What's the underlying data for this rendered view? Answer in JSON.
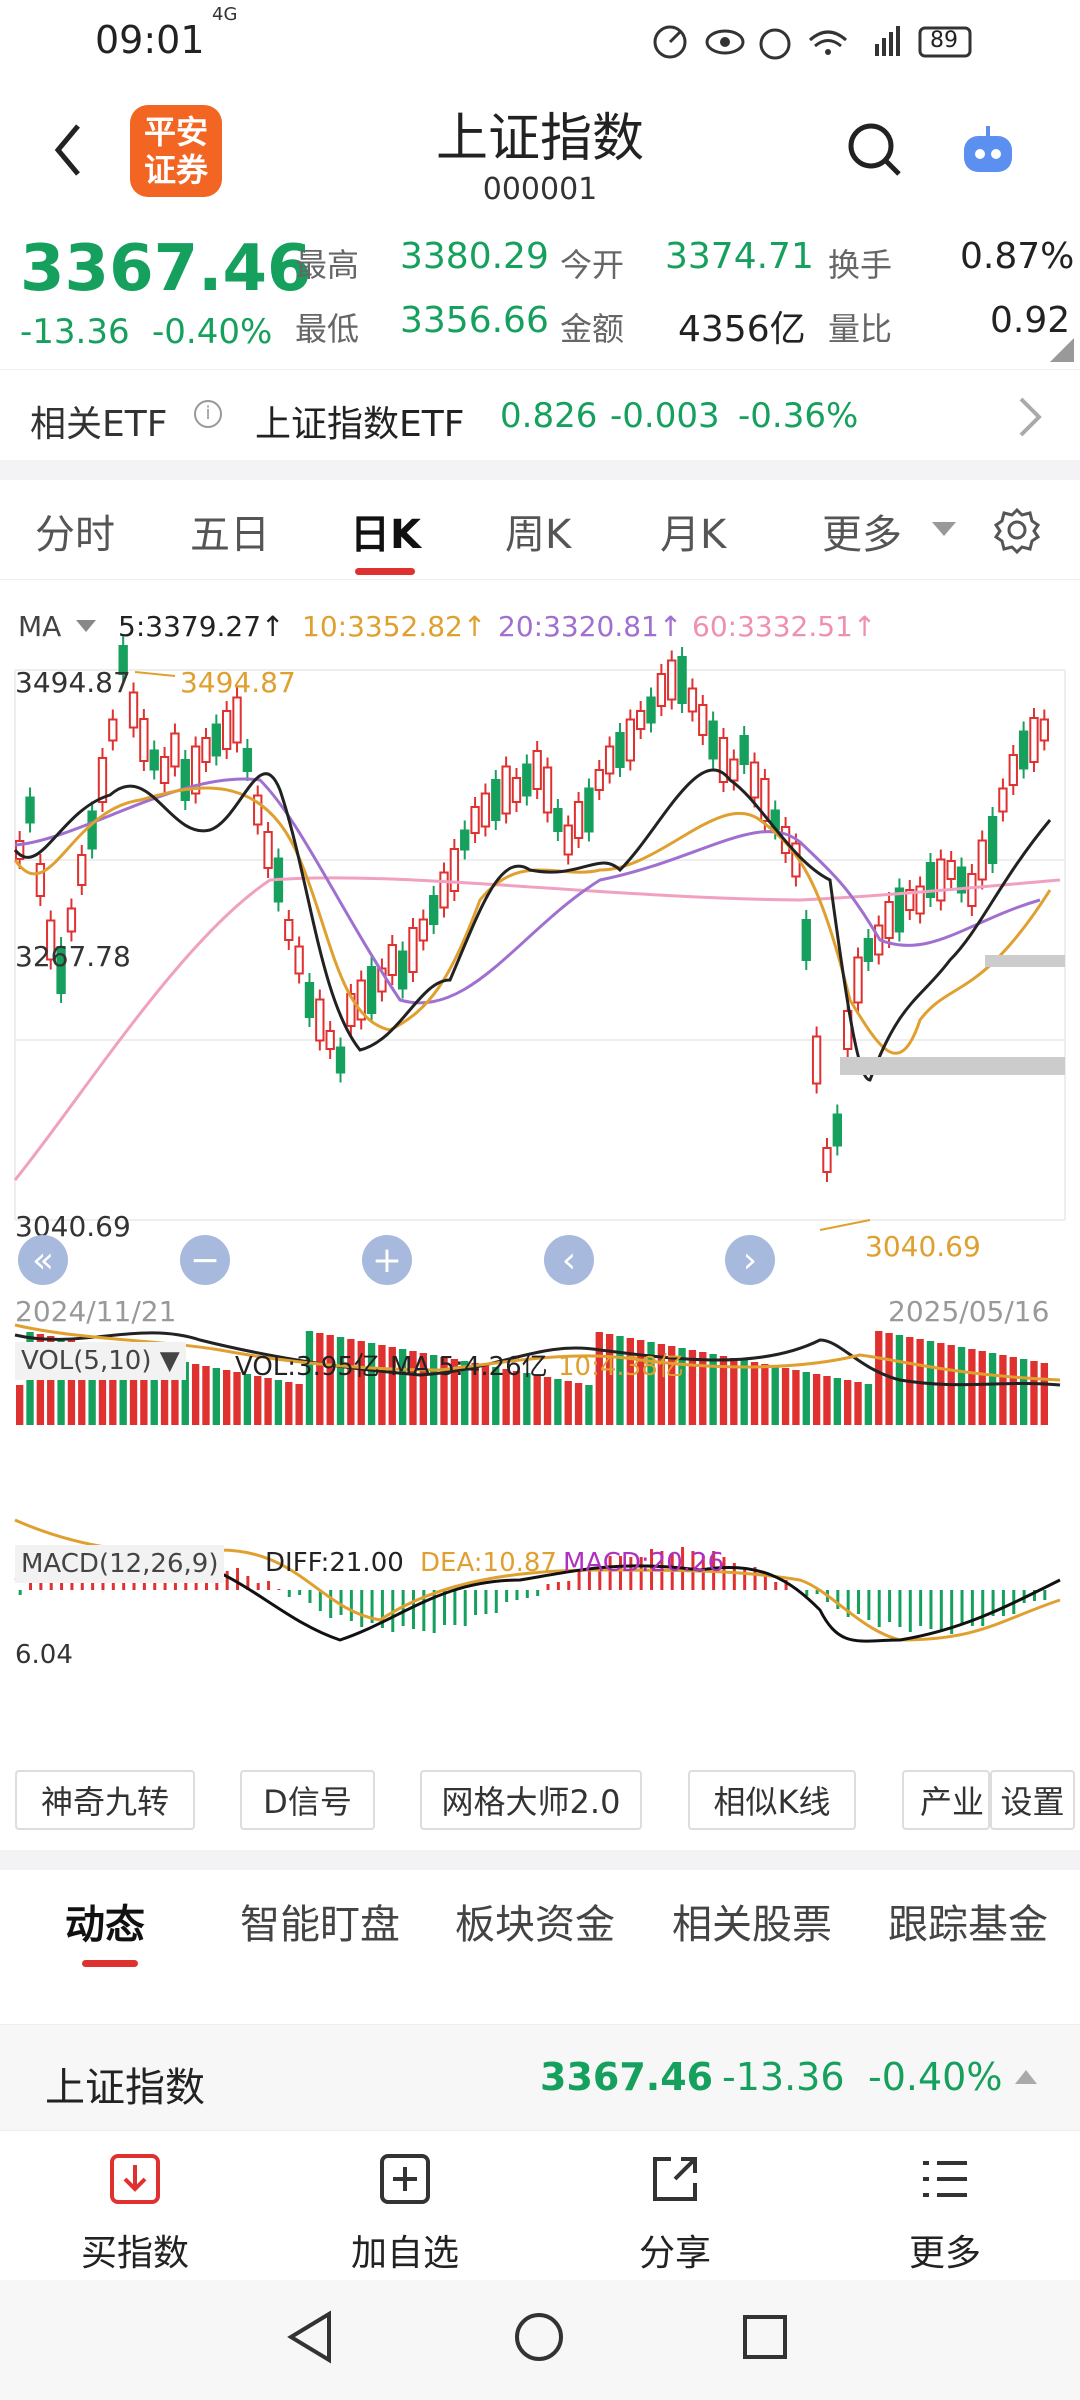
{
  "status": {
    "time": "09:01",
    "battery": "89",
    "network": "4G"
  },
  "header": {
    "title": "上证指数",
    "code": "000001",
    "logo_line1": "平安",
    "logo_line2": "证券"
  },
  "quote": {
    "price": "3367.46",
    "change": "-13.36",
    "change_pct": "-0.40%",
    "high_label": "最高",
    "high": "3380.29",
    "open_label": "今开",
    "open": "3374.71",
    "turnover_label": "换手",
    "turnover": "0.87%",
    "low_label": "最低",
    "low": "3356.66",
    "amount_label": "金额",
    "amount": "4356亿",
    "vol_ratio_label": "量比",
    "vol_ratio": "0.92"
  },
  "etf": {
    "label": "相关ETF",
    "name": "上证指数ETF",
    "price": "0.826",
    "change": "-0.003",
    "pct": "-0.36%"
  },
  "tabs": [
    "分时",
    "五日",
    "日K",
    "周K",
    "月K",
    "更多"
  ],
  "active_tab": "日K",
  "ma": {
    "label": "MA",
    "ma5": "5:3379.27↑",
    "ma10": "10:3352.82↑",
    "ma20": "20:3320.81↑",
    "ma60": "60:3332.51↑"
  },
  "chart": {
    "y_top": "3494.87",
    "y_mid": "3267.78",
    "y_bot": "3040.69",
    "max_label": "3494.87",
    "min_label": "3040.69",
    "date_start": "2024/11/21",
    "date_end": "2025/05/16"
  },
  "vol": {
    "label": "VOL(5,10)",
    "vol": "VOL:3.95亿",
    "ma5": "MA 5:4.26亿",
    "ma10": "10:4.38亿"
  },
  "macd": {
    "label": "MACD(12,26,9)",
    "diff": "DIFF:21.00",
    "dea": "DEA:10.87",
    "macd": "MACD:20.26",
    "left_val": "6.04"
  },
  "tools": [
    "神奇九转",
    "D信号",
    "网格大师2.0",
    "相似K线",
    "产业",
    "设置"
  ],
  "info_tabs": [
    "动态",
    "智能盯盘",
    "板块资金",
    "相关股票",
    "跟踪基金"
  ],
  "summary": {
    "name": "上证指数",
    "price": "3367.46",
    "change": "-13.36",
    "pct": "-0.40%"
  },
  "bottom": [
    "买指数",
    "加自选",
    "分享",
    "更多"
  ],
  "colors": {
    "up": "#e03131",
    "down": "#16a05d",
    "ma5": "#222222",
    "ma10": "#e0a030",
    "ma20": "#a070d0",
    "ma60": "#f0a0c0",
    "macd_purple": "#b030c0"
  }
}
